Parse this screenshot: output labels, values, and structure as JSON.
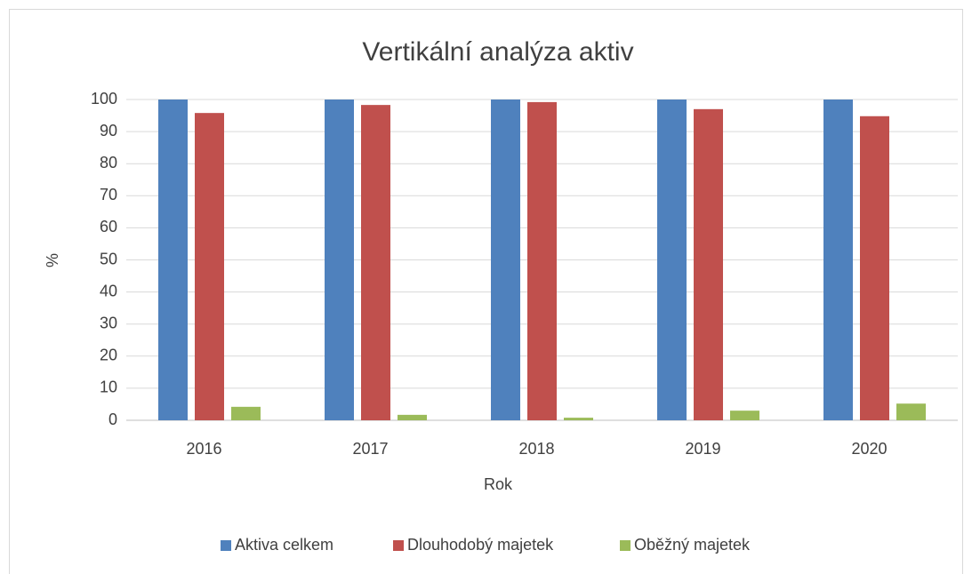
{
  "chart_data": {
    "type": "bar",
    "title": "Vertikální analýza aktiv",
    "x_label": "Rok",
    "y_label": "%",
    "categories": [
      "2016",
      "2017",
      "2018",
      "2019",
      "2020"
    ],
    "series": [
      {
        "name": "Aktiva celkem",
        "color": "#4f81bd",
        "values": [
          100,
          100,
          100,
          100,
          100
        ]
      },
      {
        "name": "Dlouhodobý majetek",
        "color": "#c0504d",
        "values": [
          95.8,
          98.3,
          99.2,
          97.0,
          94.8
        ]
      },
      {
        "name": "Oběžný majetek",
        "color": "#9bbb59",
        "values": [
          4.2,
          1.7,
          0.8,
          3.0,
          5.2
        ]
      }
    ],
    "ylim": [
      0,
      100
    ],
    "yticks": [
      0,
      10,
      20,
      30,
      40,
      50,
      60,
      70,
      80,
      90,
      100
    ],
    "grid": true,
    "legend": "bottom"
  }
}
